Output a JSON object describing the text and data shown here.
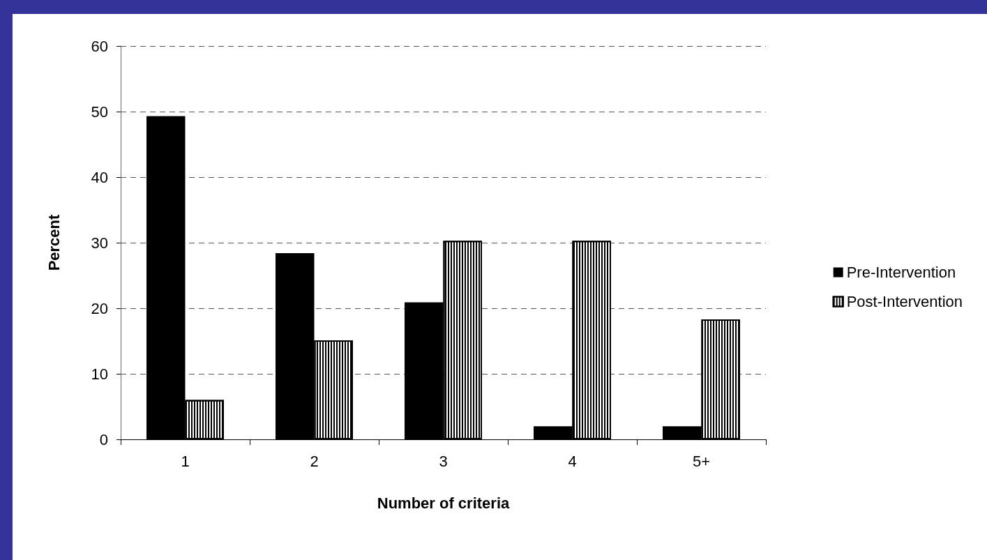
{
  "chart_data": {
    "type": "bar",
    "categories": [
      "1",
      "2",
      "3",
      "4",
      "5+"
    ],
    "xlabel": "Number of criteria",
    "ylabel": "Percent",
    "series": [
      {
        "name": "Pre-Intervention",
        "color": "#000000",
        "values": [
          49.3,
          28.4,
          20.9,
          2,
          2
        ]
      },
      {
        "name": "Post-Intervention",
        "color": "#ffffff",
        "values": [
          6,
          15.1,
          30.3,
          30.3,
          18.3
        ]
      }
    ],
    "ylim": [
      0,
      60
    ],
    "yticks": [
      0,
      10,
      20,
      30,
      40,
      50,
      60
    ],
    "grid": "y",
    "legend": "right"
  }
}
